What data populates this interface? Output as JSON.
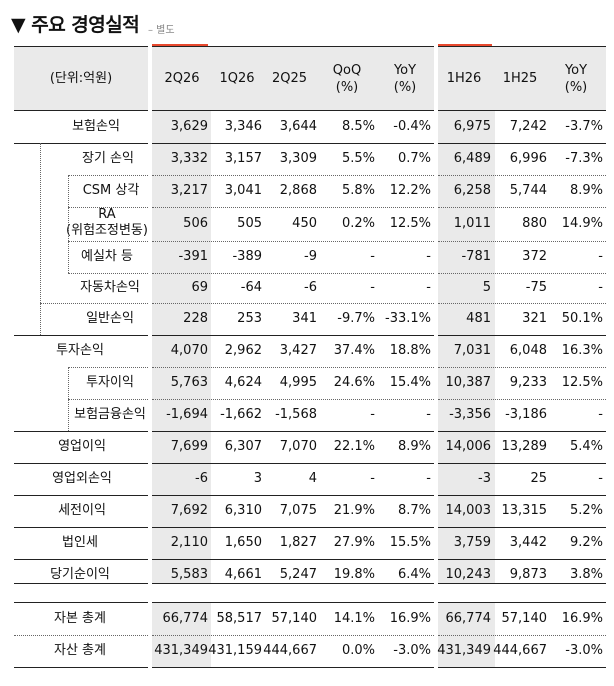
{
  "title": "▼ 주요 경영실적",
  "subtitle": "– 별도",
  "colors": {
    "shade": "#eaeaea",
    "accent": "#e8492e",
    "rule": "#222222"
  },
  "headers": {
    "unit": "(단위:억원)",
    "c1": "2Q26",
    "c2": "1Q26",
    "c3": "2Q25",
    "c4a": "QoQ",
    "c4b": "(%)",
    "c5a": "YoY",
    "c5b": "(%)",
    "c6": "1H26",
    "c7": "1H25",
    "c8a": "YoY",
    "c8b": "(%)"
  },
  "rows": [
    {
      "label": "보험손익",
      "v": [
        "3,629",
        "3,346",
        "3,644",
        "8.5%",
        "-0.4%",
        "6,975",
        "7,242",
        "-3.7%"
      ]
    },
    {
      "label": "장기 손익",
      "v": [
        "3,332",
        "3,157",
        "3,309",
        "5.5%",
        "0.7%",
        "6,489",
        "6,996",
        "-7.3%"
      ]
    },
    {
      "label": "CSM 상각",
      "v": [
        "3,217",
        "3,041",
        "2,868",
        "5.8%",
        "12.2%",
        "6,258",
        "5,744",
        "8.9%"
      ]
    },
    {
      "label": "RA",
      "label2": "(위험조정변동)",
      "v": [
        "506",
        "505",
        "450",
        "0.2%",
        "12.5%",
        "1,011",
        "880",
        "14.9%"
      ]
    },
    {
      "label": "예실차 등",
      "v": [
        "-391",
        "-389",
        "-9",
        "-",
        "-",
        "-781",
        "372",
        "-"
      ]
    },
    {
      "label": "자동차손익",
      "v": [
        "69",
        "-64",
        "-6",
        "-",
        "-",
        "5",
        "-75",
        "-"
      ]
    },
    {
      "label": "일반손익",
      "v": [
        "228",
        "253",
        "341",
        "-9.7%",
        "-33.1%",
        "481",
        "321",
        "50.1%"
      ]
    },
    {
      "label": "투자손익",
      "v": [
        "4,070",
        "2,962",
        "3,427",
        "37.4%",
        "18.8%",
        "7,031",
        "6,048",
        "16.3%"
      ]
    },
    {
      "label": "투자이익",
      "v": [
        "5,763",
        "4,624",
        "4,995",
        "24.6%",
        "15.4%",
        "10,387",
        "9,233",
        "12.5%"
      ]
    },
    {
      "label": "보험금융손익",
      "v": [
        "-1,694",
        "-1,662",
        "-1,568",
        "-",
        "-",
        "-3,356",
        "-3,186",
        "-"
      ]
    },
    {
      "label": "영업이익",
      "v": [
        "7,699",
        "6,307",
        "7,070",
        "22.1%",
        "8.9%",
        "14,006",
        "13,289",
        "5.4%"
      ]
    },
    {
      "label": "영업외손익",
      "v": [
        "-6",
        "3",
        "4",
        "-",
        "-",
        "-3",
        "25",
        "-"
      ]
    },
    {
      "label": "세전이익",
      "v": [
        "7,692",
        "6,310",
        "7,075",
        "21.9%",
        "8.7%",
        "14,003",
        "13,315",
        "5.2%"
      ]
    },
    {
      "label": "법인세",
      "v": [
        "2,110",
        "1,650",
        "1,827",
        "27.9%",
        "15.5%",
        "3,759",
        "3,442",
        "9.2%"
      ]
    },
    {
      "label": "당기순이익",
      "v": [
        "5,583",
        "4,661",
        "5,247",
        "19.8%",
        "6.4%",
        "10,243",
        "9,873",
        "3.8%"
      ]
    },
    {
      "label": "자본 총계",
      "v": [
        "66,774",
        "58,517",
        "57,140",
        "14.1%",
        "16.9%",
        "66,774",
        "57,140",
        "16.9%"
      ]
    },
    {
      "label": "자산 총계",
      "v": [
        "431,349",
        "431,159",
        "444,667",
        "0.0%",
        "-3.0%",
        "431,349",
        "444,667",
        "-3.0%"
      ]
    }
  ]
}
